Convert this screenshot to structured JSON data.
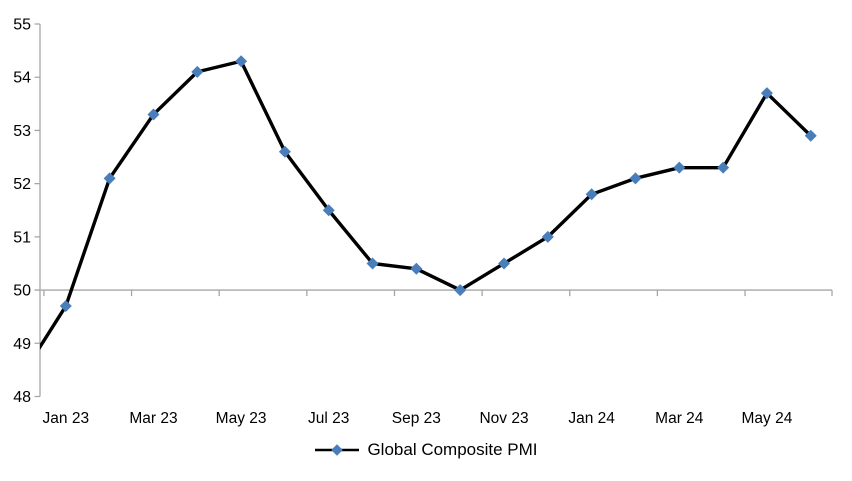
{
  "chart_data": {
    "type": "line",
    "title": "",
    "legend": "Global Composite PMI",
    "x": [
      "Dec 22",
      "Jan 23",
      "Feb 23",
      "Mar 23",
      "Apr 23",
      "May 23",
      "Jun 23",
      "Jul 23",
      "Aug 23",
      "Sep 23",
      "Oct 23",
      "Nov 23",
      "Dec 23",
      "Jan 24",
      "Feb 24",
      "Mar 24",
      "Apr 24",
      "May 24",
      "Jun 24"
    ],
    "values": [
      48.4,
      49.7,
      52.1,
      53.3,
      54.1,
      54.3,
      52.6,
      51.5,
      50.5,
      50.4,
      50.0,
      50.5,
      51.0,
      51.8,
      52.1,
      52.3,
      52.3,
      53.7,
      52.9
    ],
    "x_tick_labels": [
      "Jan 23",
      "Mar 23",
      "May 23",
      "Jul 23",
      "Sep 23",
      "Nov 23",
      "Jan 24",
      "Mar 24",
      "May 24"
    ],
    "y_ticks": [
      55,
      54,
      53,
      52,
      51,
      50,
      49,
      48
    ],
    "ylim": [
      48,
      55
    ],
    "category_axis_crosses_at": 50,
    "first_point_clipped_at_left_edge": true,
    "grid": "horizontal line at 50 only",
    "legend_position": "bottom-center",
    "colors": {
      "line": "#000000",
      "marker": "#4a7ebb",
      "axis": "#a6a6a6",
      "text": "#000000",
      "background": "#ffffff"
    }
  }
}
